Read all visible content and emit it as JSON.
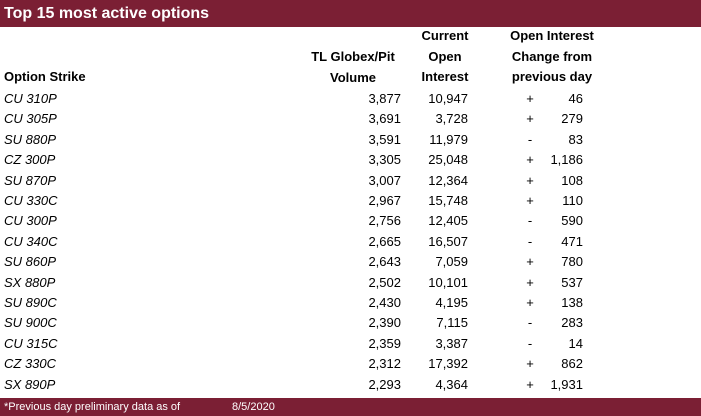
{
  "title": "Top 15 most active options",
  "headers": {
    "strike": "Option Strike",
    "volume": [
      "TL Globex/Pit",
      "Volume"
    ],
    "open_interest": [
      "Current",
      "Open",
      "Interest"
    ],
    "change": [
      "Open Interest",
      "Change from",
      "previous day"
    ]
  },
  "rows": [
    {
      "strike": "CU 310P",
      "volume": "3,877",
      "oi": "10,947",
      "sign": "+",
      "change": "46"
    },
    {
      "strike": "CU 305P",
      "volume": "3,691",
      "oi": "3,728",
      "sign": "+",
      "change": "279"
    },
    {
      "strike": "SU 880P",
      "volume": "3,591",
      "oi": "11,979",
      "sign": "-",
      "change": "83"
    },
    {
      "strike": "CZ 300P",
      "volume": "3,305",
      "oi": "25,048",
      "sign": "+",
      "change": "1,186"
    },
    {
      "strike": "SU 870P",
      "volume": "3,007",
      "oi": "12,364",
      "sign": "+",
      "change": "108"
    },
    {
      "strike": "CU 330C",
      "volume": "2,967",
      "oi": "15,748",
      "sign": "+",
      "change": "110"
    },
    {
      "strike": "CU 300P",
      "volume": "2,756",
      "oi": "12,405",
      "sign": "-",
      "change": "590"
    },
    {
      "strike": "CU 340C",
      "volume": "2,665",
      "oi": "16,507",
      "sign": "-",
      "change": "471"
    },
    {
      "strike": "SU 860P",
      "volume": "2,643",
      "oi": "7,059",
      "sign": "+",
      "change": "780"
    },
    {
      "strike": "SX 880P",
      "volume": "2,502",
      "oi": "10,101",
      "sign": "+",
      "change": "537"
    },
    {
      "strike": "SU 890C",
      "volume": "2,430",
      "oi": "4,195",
      "sign": "+",
      "change": "138"
    },
    {
      "strike": "SU 900C",
      "volume": "2,390",
      "oi": "7,115",
      "sign": "-",
      "change": "283"
    },
    {
      "strike": "CU 315C",
      "volume": "2,359",
      "oi": "3,387",
      "sign": "-",
      "change": "14"
    },
    {
      "strike": "CZ 330C",
      "volume": "2,312",
      "oi": "17,392",
      "sign": "+",
      "change": "862"
    },
    {
      "strike": "SX 890P",
      "volume": "2,293",
      "oi": "4,364",
      "sign": "+",
      "change": "1,931"
    }
  ],
  "footer": {
    "note": "*Previous day preliminary data as of",
    "date": "8/5/2020"
  },
  "colors": {
    "accent": "#7b1f34",
    "text": "#000000",
    "background": "#ffffff"
  }
}
